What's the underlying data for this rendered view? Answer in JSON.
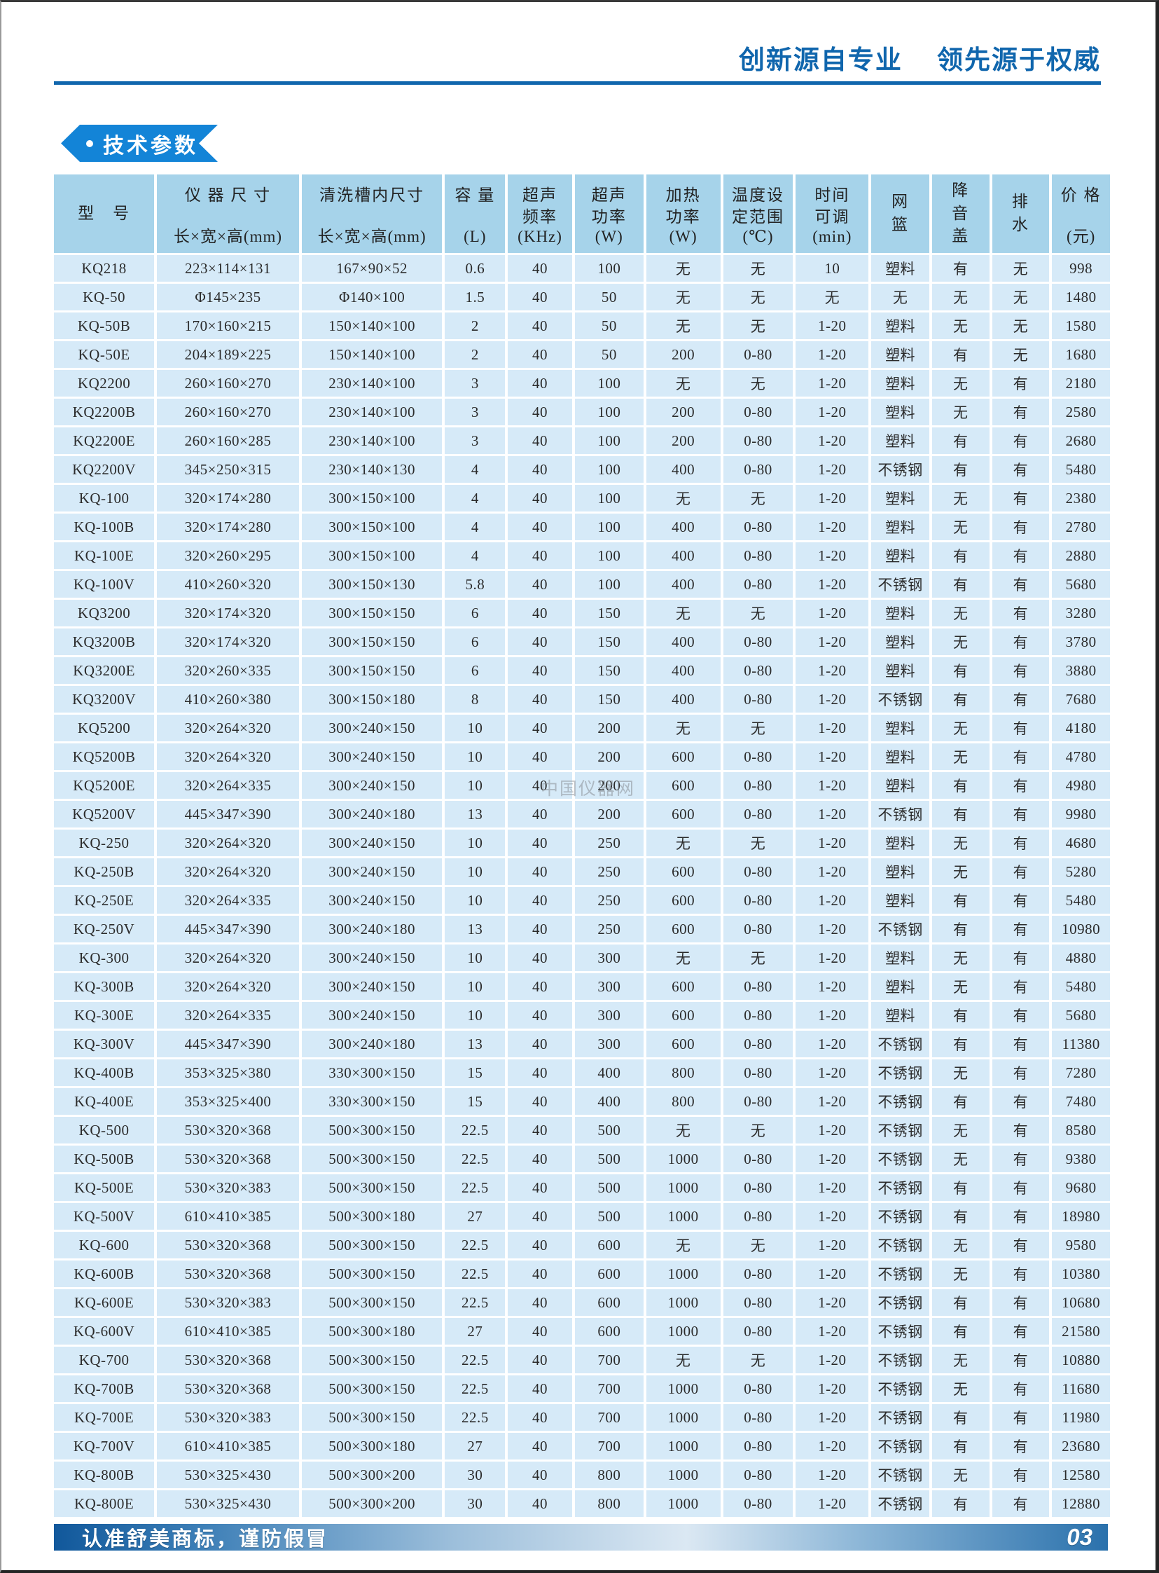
{
  "page": {
    "header_slogan": "创新源自专业    领先源于权威",
    "badge_label": "技术参数",
    "watermark": "中国仪器网",
    "footer_note": "认准舒美商标，谨防假冒",
    "page_number": "03"
  },
  "colors": {
    "accent_blue": "#1066ad",
    "badge_blue": "#1384d7",
    "header_cell_bg": "#a6d3ea",
    "body_cell_bg": "#d6eaf8",
    "footer_gradient_left": "#11589b",
    "footer_gradient_mid": "#dbe8f3",
    "footer_gradient_right": "#2a71ac"
  },
  "table": {
    "columns": [
      {
        "lines": [
          "型　号"
        ],
        "unit": ""
      },
      {
        "lines": [
          "仪 器 尺 寸"
        ],
        "unit": "长×宽×高(mm)"
      },
      {
        "lines": [
          "清洗槽内尺寸"
        ],
        "unit": "长×宽×高(mm)"
      },
      {
        "lines": [
          "容 量"
        ],
        "unit": "(L)"
      },
      {
        "lines": [
          "超声",
          "频率"
        ],
        "unit": "(KHz)"
      },
      {
        "lines": [
          "超声",
          "功率"
        ],
        "unit": "(W)"
      },
      {
        "lines": [
          "加热",
          "功率"
        ],
        "unit": "(W)"
      },
      {
        "lines": [
          "温度设",
          "定范围"
        ],
        "unit": "(℃)"
      },
      {
        "lines": [
          "时间",
          "可调"
        ],
        "unit": "(min)"
      },
      {
        "lines": [
          "网",
          "篮"
        ],
        "unit": ""
      },
      {
        "lines": [
          "降",
          "音",
          "盖"
        ],
        "unit": ""
      },
      {
        "lines": [
          "排",
          "水"
        ],
        "unit": ""
      },
      {
        "lines": [
          "价 格"
        ],
        "unit": "(元)"
      }
    ],
    "rows": [
      [
        "KQ218",
        "223×114×131",
        "167×90×52",
        "0.6",
        "40",
        "100",
        "无",
        "无",
        "10",
        "塑料",
        "有",
        "无",
        "998"
      ],
      [
        "KQ-50",
        "Φ145×235",
        "Φ140×100",
        "1.5",
        "40",
        "50",
        "无",
        "无",
        "无",
        "无",
        "无",
        "无",
        "1480"
      ],
      [
        "KQ-50B",
        "170×160×215",
        "150×140×100",
        "2",
        "40",
        "50",
        "无",
        "无",
        "1-20",
        "塑料",
        "无",
        "无",
        "1580"
      ],
      [
        "KQ-50E",
        "204×189×225",
        "150×140×100",
        "2",
        "40",
        "50",
        "200",
        "0-80",
        "1-20",
        "塑料",
        "有",
        "无",
        "1680"
      ],
      [
        "KQ2200",
        "260×160×270",
        "230×140×100",
        "3",
        "40",
        "100",
        "无",
        "无",
        "1-20",
        "塑料",
        "无",
        "有",
        "2180"
      ],
      [
        "KQ2200B",
        "260×160×270",
        "230×140×100",
        "3",
        "40",
        "100",
        "200",
        "0-80",
        "1-20",
        "塑料",
        "无",
        "有",
        "2580"
      ],
      [
        "KQ2200E",
        "260×160×285",
        "230×140×100",
        "3",
        "40",
        "100",
        "200",
        "0-80",
        "1-20",
        "塑料",
        "有",
        "有",
        "2680"
      ],
      [
        "KQ2200V",
        "345×250×315",
        "230×140×130",
        "4",
        "40",
        "100",
        "400",
        "0-80",
        "1-20",
        "不锈钢",
        "有",
        "有",
        "5480"
      ],
      [
        "KQ-100",
        "320×174×280",
        "300×150×100",
        "4",
        "40",
        "100",
        "无",
        "无",
        "1-20",
        "塑料",
        "无",
        "有",
        "2380"
      ],
      [
        "KQ-100B",
        "320×174×280",
        "300×150×100",
        "4",
        "40",
        "100",
        "400",
        "0-80",
        "1-20",
        "塑料",
        "无",
        "有",
        "2780"
      ],
      [
        "KQ-100E",
        "320×260×295",
        "300×150×100",
        "4",
        "40",
        "100",
        "400",
        "0-80",
        "1-20",
        "塑料",
        "有",
        "有",
        "2880"
      ],
      [
        "KQ-100V",
        "410×260×320",
        "300×150×130",
        "5.8",
        "40",
        "100",
        "400",
        "0-80",
        "1-20",
        "不锈钢",
        "有",
        "有",
        "5680"
      ],
      [
        "KQ3200",
        "320×174×320",
        "300×150×150",
        "6",
        "40",
        "150",
        "无",
        "无",
        "1-20",
        "塑料",
        "无",
        "有",
        "3280"
      ],
      [
        "KQ3200B",
        "320×174×320",
        "300×150×150",
        "6",
        "40",
        "150",
        "400",
        "0-80",
        "1-20",
        "塑料",
        "无",
        "有",
        "3780"
      ],
      [
        "KQ3200E",
        "320×260×335",
        "300×150×150",
        "6",
        "40",
        "150",
        "400",
        "0-80",
        "1-20",
        "塑料",
        "有",
        "有",
        "3880"
      ],
      [
        "KQ3200V",
        "410×260×380",
        "300×150×180",
        "8",
        "40",
        "150",
        "400",
        "0-80",
        "1-20",
        "不锈钢",
        "有",
        "有",
        "7680"
      ],
      [
        "KQ5200",
        "320×264×320",
        "300×240×150",
        "10",
        "40",
        "200",
        "无",
        "无",
        "1-20",
        "塑料",
        "无",
        "有",
        "4180"
      ],
      [
        "KQ5200B",
        "320×264×320",
        "300×240×150",
        "10",
        "40",
        "200",
        "600",
        "0-80",
        "1-20",
        "塑料",
        "无",
        "有",
        "4780"
      ],
      [
        "KQ5200E",
        "320×264×335",
        "300×240×150",
        "10",
        "40",
        "200",
        "600",
        "0-80",
        "1-20",
        "塑料",
        "有",
        "有",
        "4980"
      ],
      [
        "KQ5200V",
        "445×347×390",
        "300×240×180",
        "13",
        "40",
        "200",
        "600",
        "0-80",
        "1-20",
        "不锈钢",
        "有",
        "有",
        "9980"
      ],
      [
        "KQ-250",
        "320×264×320",
        "300×240×150",
        "10",
        "40",
        "250",
        "无",
        "无",
        "1-20",
        "塑料",
        "无",
        "有",
        "4680"
      ],
      [
        "KQ-250B",
        "320×264×320",
        "300×240×150",
        "10",
        "40",
        "250",
        "600",
        "0-80",
        "1-20",
        "塑料",
        "无",
        "有",
        "5280"
      ],
      [
        "KQ-250E",
        "320×264×335",
        "300×240×150",
        "10",
        "40",
        "250",
        "600",
        "0-80",
        "1-20",
        "塑料",
        "有",
        "有",
        "5480"
      ],
      [
        "KQ-250V",
        "445×347×390",
        "300×240×180",
        "13",
        "40",
        "250",
        "600",
        "0-80",
        "1-20",
        "不锈钢",
        "有",
        "有",
        "10980"
      ],
      [
        "KQ-300",
        "320×264×320",
        "300×240×150",
        "10",
        "40",
        "300",
        "无",
        "无",
        "1-20",
        "塑料",
        "无",
        "有",
        "4880"
      ],
      [
        "KQ-300B",
        "320×264×320",
        "300×240×150",
        "10",
        "40",
        "300",
        "600",
        "0-80",
        "1-20",
        "塑料",
        "无",
        "有",
        "5480"
      ],
      [
        "KQ-300E",
        "320×264×335",
        "300×240×150",
        "10",
        "40",
        "300",
        "600",
        "0-80",
        "1-20",
        "塑料",
        "有",
        "有",
        "5680"
      ],
      [
        "KQ-300V",
        "445×347×390",
        "300×240×180",
        "13",
        "40",
        "300",
        "600",
        "0-80",
        "1-20",
        "不锈钢",
        "有",
        "有",
        "11380"
      ],
      [
        "KQ-400B",
        "353×325×380",
        "330×300×150",
        "15",
        "40",
        "400",
        "800",
        "0-80",
        "1-20",
        "不锈钢",
        "无",
        "有",
        "7280"
      ],
      [
        "KQ-400E",
        "353×325×400",
        "330×300×150",
        "15",
        "40",
        "400",
        "800",
        "0-80",
        "1-20",
        "不锈钢",
        "有",
        "有",
        "7480"
      ],
      [
        "KQ-500",
        "530×320×368",
        "500×300×150",
        "22.5",
        "40",
        "500",
        "无",
        "无",
        "1-20",
        "不锈钢",
        "无",
        "有",
        "8580"
      ],
      [
        "KQ-500B",
        "530×320×368",
        "500×300×150",
        "22.5",
        "40",
        "500",
        "1000",
        "0-80",
        "1-20",
        "不锈钢",
        "无",
        "有",
        "9380"
      ],
      [
        "KQ-500E",
        "530×320×383",
        "500×300×150",
        "22.5",
        "40",
        "500",
        "1000",
        "0-80",
        "1-20",
        "不锈钢",
        "有",
        "有",
        "9680"
      ],
      [
        "KQ-500V",
        "610×410×385",
        "500×300×180",
        "27",
        "40",
        "500",
        "1000",
        "0-80",
        "1-20",
        "不锈钢",
        "有",
        "有",
        "18980"
      ],
      [
        "KQ-600",
        "530×320×368",
        "500×300×150",
        "22.5",
        "40",
        "600",
        "无",
        "无",
        "1-20",
        "不锈钢",
        "无",
        "有",
        "9580"
      ],
      [
        "KQ-600B",
        "530×320×368",
        "500×300×150",
        "22.5",
        "40",
        "600",
        "1000",
        "0-80",
        "1-20",
        "不锈钢",
        "无",
        "有",
        "10380"
      ],
      [
        "KQ-600E",
        "530×320×383",
        "500×300×150",
        "22.5",
        "40",
        "600",
        "1000",
        "0-80",
        "1-20",
        "不锈钢",
        "有",
        "有",
        "10680"
      ],
      [
        "KQ-600V",
        "610×410×385",
        "500×300×180",
        "27",
        "40",
        "600",
        "1000",
        "0-80",
        "1-20",
        "不锈钢",
        "有",
        "有",
        "21580"
      ],
      [
        "KQ-700",
        "530×320×368",
        "500×300×150",
        "22.5",
        "40",
        "700",
        "无",
        "无",
        "1-20",
        "不锈钢",
        "无",
        "有",
        "10880"
      ],
      [
        "KQ-700B",
        "530×320×368",
        "500×300×150",
        "22.5",
        "40",
        "700",
        "1000",
        "0-80",
        "1-20",
        "不锈钢",
        "无",
        "有",
        "11680"
      ],
      [
        "KQ-700E",
        "530×320×383",
        "500×300×150",
        "22.5",
        "40",
        "700",
        "1000",
        "0-80",
        "1-20",
        "不锈钢",
        "有",
        "有",
        "11980"
      ],
      [
        "KQ-700V",
        "610×410×385",
        "500×300×180",
        "27",
        "40",
        "700",
        "1000",
        "0-80",
        "1-20",
        "不锈钢",
        "有",
        "有",
        "23680"
      ],
      [
        "KQ-800B",
        "530×325×430",
        "500×300×200",
        "30",
        "40",
        "800",
        "1000",
        "0-80",
        "1-20",
        "不锈钢",
        "无",
        "有",
        "12580"
      ],
      [
        "KQ-800E",
        "530×325×430",
        "500×300×200",
        "30",
        "40",
        "800",
        "1000",
        "0-80",
        "1-20",
        "不锈钢",
        "有",
        "有",
        "12880"
      ]
    ]
  }
}
